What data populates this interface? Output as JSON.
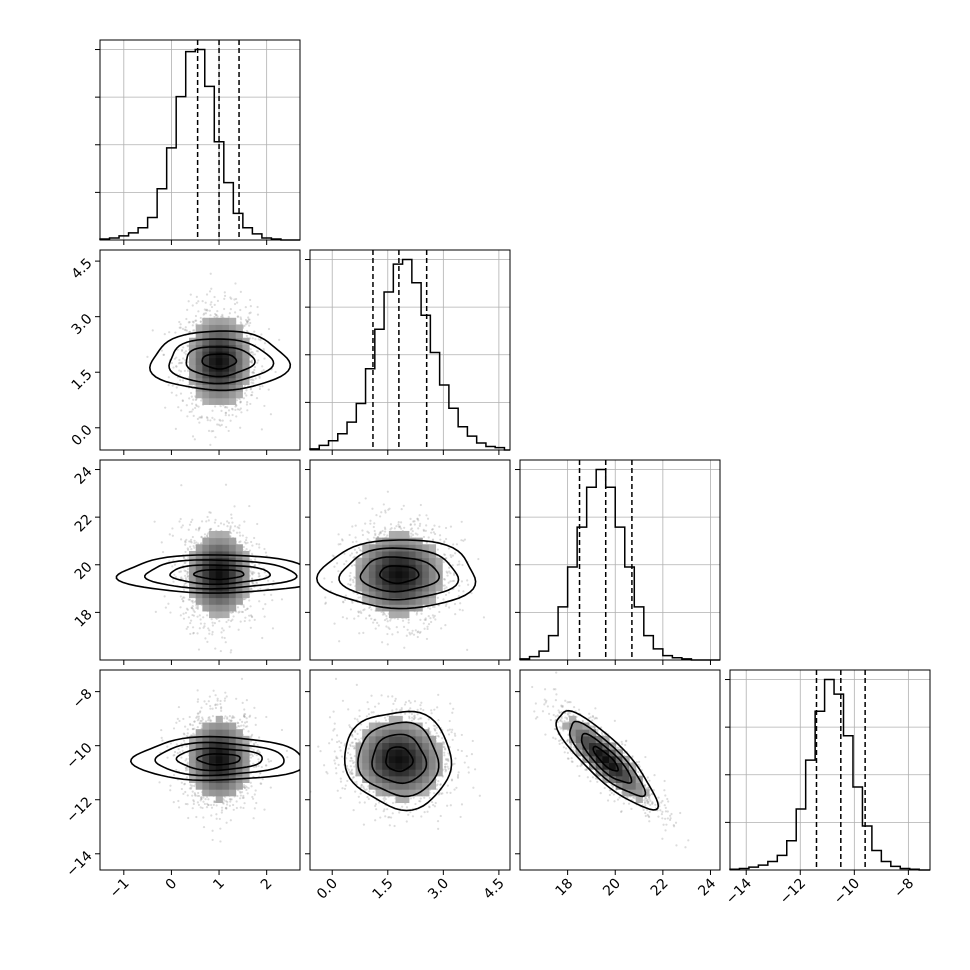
{
  "chart_data": {
    "type": "corner",
    "grid": true,
    "params": [
      {
        "range": [
          -1.5,
          2.7
        ],
        "ticks": [
          -1,
          0,
          1,
          2
        ],
        "tick_labels": [
          "−1",
          "0",
          "1",
          "2"
        ],
        "quantiles": [
          0.55,
          1.0,
          1.42
        ],
        "hist_bins_start": -1.5,
        "hist_bin_width": 0.2,
        "hist_counts": [
          0.5,
          1,
          2,
          3.5,
          6,
          11,
          25,
          45,
          70,
          92,
          93,
          75,
          48,
          28,
          13,
          6,
          3,
          1,
          0.5,
          0,
          0
        ]
      },
      {
        "range": [
          -0.6,
          4.8
        ],
        "ticks": [
          0.0,
          1.5,
          3.0,
          4.5
        ],
        "tick_labels": [
          "0.0",
          "1.5",
          "3.0",
          "4.5"
        ],
        "quantiles": [
          1.1,
          1.8,
          2.55
        ],
        "hist_bins_start": -0.6,
        "hist_bin_width": 0.25,
        "hist_counts": [
          0.5,
          2,
          4,
          7,
          12,
          20,
          35,
          52,
          68,
          80,
          82,
          72,
          58,
          42,
          28,
          18,
          10,
          6,
          3,
          1.5,
          1,
          0
        ]
      },
      {
        "range": [
          16.0,
          24.4
        ],
        "ticks": [
          18,
          20,
          22,
          24
        ],
        "tick_labels": [
          "18",
          "20",
          "22",
          "24"
        ],
        "quantiles": [
          18.5,
          19.6,
          20.7
        ],
        "hist_bins_start": 16.0,
        "hist_bin_width": 0.4,
        "hist_counts": [
          0.5,
          1.5,
          4,
          11,
          24,
          42,
          60,
          78,
          86,
          78,
          60,
          42,
          24,
          11,
          5,
          2,
          1,
          0.5,
          0,
          0,
          0
        ]
      },
      {
        "range": [
          -14.6,
          -7.2
        ],
        "ticks": [
          -14,
          -12,
          -10,
          -8
        ],
        "tick_labels": [
          "−14",
          "−12",
          "−10",
          "−8"
        ],
        "quantiles": [
          -11.4,
          -10.5,
          -9.6
        ],
        "hist_bins_start": -14.6,
        "hist_bin_width": 0.35,
        "hist_counts": [
          0.3,
          0.6,
          1.2,
          2,
          3.5,
          6,
          12,
          25,
          45,
          65,
          78,
          72,
          55,
          34,
          18,
          8,
          3.5,
          1.5,
          0.6,
          0.3,
          0,
          0
        ]
      }
    ],
    "correlations": {
      "1,0": 0.0,
      "2,0": 0.0,
      "2,1": 0.0,
      "3,0": 0.0,
      "3,1": -0.05,
      "3,2": -0.85
    },
    "sigmas": [
      0.4,
      0.72,
      1.05,
      0.9
    ]
  }
}
